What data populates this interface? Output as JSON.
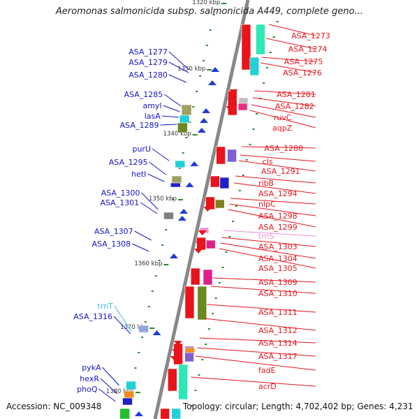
{
  "title": "Aeromonas salmonicida subsp. salmonicida A449, complete geno...",
  "footer": {
    "accession": "Accession: NC_009348",
    "topology": "Topology: circular; Length: 4,702,402 bp; Genes: 4,231"
  },
  "colors": {
    "forward_label": "#e8141b",
    "reverse_label": "#1414c8",
    "trna_forward": "#f08ad0",
    "trna_reverse": "#40b8e0",
    "backbone": "#888888",
    "tick": "#2a8a2a"
  },
  "scale_labels": [
    "1320 kbp",
    "1330 kbp",
    "1340 kbp",
    "1350 kbp",
    "1360 kbp",
    "1370 kbp",
    "1380 kbp"
  ],
  "genes_right": [
    {
      "name": "ASA_1273"
    },
    {
      "name": "ASA_1274"
    },
    {
      "name": "ASA_1275"
    },
    {
      "name": "ASA_1276"
    },
    {
      "name": "ASA_1281"
    },
    {
      "name": "ASA_1282"
    },
    {
      "name": "ruvC"
    },
    {
      "name": "aqpZ"
    },
    {
      "name": "ASA_1288"
    },
    {
      "name": "cls"
    },
    {
      "name": "ASA_1291"
    },
    {
      "name": "ribB"
    },
    {
      "name": "ASA_1294"
    },
    {
      "name": "nlpC"
    },
    {
      "name": "ASA_1298"
    },
    {
      "name": "ASA_1299"
    },
    {
      "name": "trnS",
      "trna": true
    },
    {
      "name": "ASA_1303"
    },
    {
      "name": "ASA_1304"
    },
    {
      "name": "ASA_1305"
    },
    {
      "name": "ASA_1309"
    },
    {
      "name": "ASA_1310"
    },
    {
      "name": "ASA_1311"
    },
    {
      "name": "ASA_1312"
    },
    {
      "name": "ASA_1314"
    },
    {
      "name": "ASA_1317"
    },
    {
      "name": "fadE"
    },
    {
      "name": "acrD"
    }
  ],
  "genes_left": [
    {
      "name": "ASA_1277"
    },
    {
      "name": "ASA_1279"
    },
    {
      "name": "ASA_1280"
    },
    {
      "name": "ASA_1285"
    },
    {
      "name": "amyl"
    },
    {
      "name": "lasA"
    },
    {
      "name": "ASA_1289"
    },
    {
      "name": "purU"
    },
    {
      "name": "ASA_1295"
    },
    {
      "name": "hetI"
    },
    {
      "name": "ASA_1300"
    },
    {
      "name": "ASA_1301"
    },
    {
      "name": "ASA_1307"
    },
    {
      "name": "ASA_1308"
    },
    {
      "name": "trnT",
      "trna": true
    },
    {
      "name": "ASA_1316"
    },
    {
      "name": "pykA"
    },
    {
      "name": "hexR"
    },
    {
      "name": "phoQ"
    }
  ]
}
